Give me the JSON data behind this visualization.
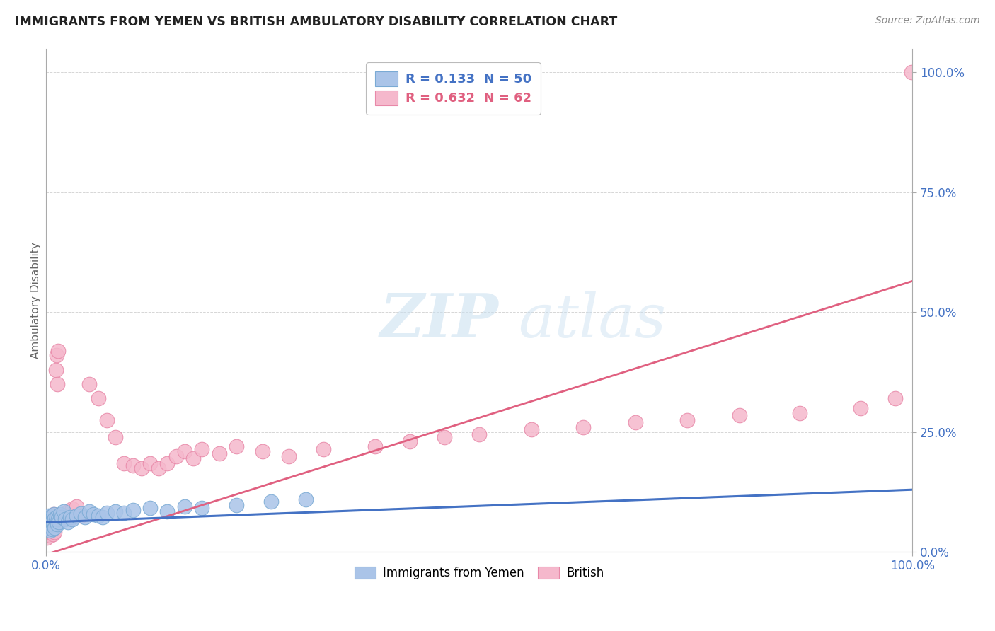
{
  "title": "IMMIGRANTS FROM YEMEN VS BRITISH AMBULATORY DISABILITY CORRELATION CHART",
  "source": "Source: ZipAtlas.com",
  "ylabel": "Ambulatory Disability",
  "right_yticks": [
    "100.0%",
    "75.0%",
    "50.0%",
    "25.0%",
    "0.0%"
  ],
  "right_ytick_vals": [
    1.0,
    0.75,
    0.5,
    0.25,
    0.0
  ],
  "legend_label_yemen": "R = 0.133  N = 50",
  "legend_label_british": "R = 0.632  N = 62",
  "legend_labels_bottom": [
    "Immigrants from Yemen",
    "British"
  ],
  "background_color": "#ffffff",
  "grid_color": "#cccccc",
  "yemen_color": "#aac4e8",
  "yemen_edge_color": "#7aaad4",
  "yemen_line_color": "#4472c4",
  "british_color": "#f5b8cc",
  "british_edge_color": "#e888a8",
  "british_line_color": "#e06080",
  "watermark_zip_color": "#c8dff0",
  "watermark_atlas_color": "#c8dff0",
  "title_color": "#222222",
  "source_color": "#888888",
  "tick_color": "#4472c4",
  "ylabel_color": "#666666",
  "xlim": [
    0.0,
    1.0
  ],
  "ylim": [
    0.0,
    1.05
  ],
  "yemen_trend_intercept": 0.062,
  "yemen_trend_slope": 0.068,
  "british_trend_intercept": -0.005,
  "british_trend_slope": 0.57,
  "yemen_x": [
    0.001,
    0.001,
    0.002,
    0.002,
    0.003,
    0.003,
    0.004,
    0.004,
    0.005,
    0.005,
    0.006,
    0.006,
    0.007,
    0.007,
    0.008,
    0.008,
    0.009,
    0.009,
    0.01,
    0.01,
    0.011,
    0.012,
    0.013,
    0.014,
    0.015,
    0.016,
    0.018,
    0.02,
    0.022,
    0.025,
    0.028,
    0.03,
    0.035,
    0.04,
    0.045,
    0.05,
    0.055,
    0.06,
    0.065,
    0.07,
    0.08,
    0.09,
    0.1,
    0.12,
    0.14,
    0.16,
    0.18,
    0.22,
    0.26,
    0.3
  ],
  "yemen_y": [
    0.05,
    0.065,
    0.055,
    0.07,
    0.06,
    0.075,
    0.058,
    0.068,
    0.045,
    0.062,
    0.052,
    0.072,
    0.048,
    0.068,
    0.058,
    0.075,
    0.062,
    0.078,
    0.05,
    0.07,
    0.065,
    0.072,
    0.058,
    0.068,
    0.062,
    0.078,
    0.072,
    0.085,
    0.068,
    0.062,
    0.072,
    0.068,
    0.075,
    0.08,
    0.072,
    0.085,
    0.078,
    0.075,
    0.072,
    0.082,
    0.085,
    0.082,
    0.088,
    0.092,
    0.085,
    0.095,
    0.092,
    0.098,
    0.105,
    0.11
  ],
  "british_x": [
    0.001,
    0.001,
    0.002,
    0.002,
    0.003,
    0.003,
    0.004,
    0.004,
    0.005,
    0.005,
    0.006,
    0.006,
    0.007,
    0.007,
    0.008,
    0.008,
    0.009,
    0.009,
    0.01,
    0.01,
    0.011,
    0.012,
    0.013,
    0.014,
    0.015,
    0.02,
    0.025,
    0.03,
    0.035,
    0.04,
    0.05,
    0.06,
    0.07,
    0.08,
    0.09,
    0.1,
    0.11,
    0.12,
    0.13,
    0.14,
    0.15,
    0.16,
    0.17,
    0.18,
    0.2,
    0.22,
    0.25,
    0.28,
    0.32,
    0.38,
    0.42,
    0.46,
    0.5,
    0.56,
    0.62,
    0.68,
    0.74,
    0.8,
    0.87,
    0.94,
    0.98,
    0.999
  ],
  "british_y": [
    0.03,
    0.045,
    0.038,
    0.055,
    0.042,
    0.06,
    0.048,
    0.065,
    0.035,
    0.058,
    0.042,
    0.065,
    0.05,
    0.072,
    0.038,
    0.068,
    0.055,
    0.078,
    0.042,
    0.068,
    0.38,
    0.41,
    0.35,
    0.42,
    0.065,
    0.075,
    0.085,
    0.09,
    0.095,
    0.075,
    0.35,
    0.32,
    0.275,
    0.24,
    0.185,
    0.18,
    0.175,
    0.185,
    0.175,
    0.185,
    0.2,
    0.21,
    0.195,
    0.215,
    0.205,
    0.22,
    0.21,
    0.2,
    0.215,
    0.22,
    0.23,
    0.24,
    0.245,
    0.255,
    0.26,
    0.27,
    0.275,
    0.285,
    0.29,
    0.3,
    0.32,
    1.0
  ]
}
